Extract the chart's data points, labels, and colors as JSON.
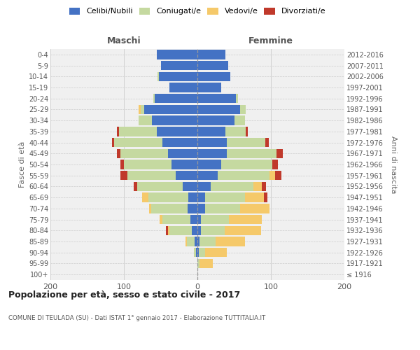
{
  "age_groups": [
    "100+",
    "95-99",
    "90-94",
    "85-89",
    "80-84",
    "75-79",
    "70-74",
    "65-69",
    "60-64",
    "55-59",
    "50-54",
    "45-49",
    "40-44",
    "35-39",
    "30-34",
    "25-29",
    "20-24",
    "15-19",
    "10-14",
    "5-9",
    "0-4"
  ],
  "birth_years": [
    "≤ 1916",
    "1917-1921",
    "1922-1926",
    "1927-1931",
    "1932-1936",
    "1937-1941",
    "1942-1946",
    "1947-1951",
    "1952-1956",
    "1957-1961",
    "1962-1966",
    "1967-1971",
    "1972-1976",
    "1977-1981",
    "1982-1986",
    "1987-1991",
    "1992-1996",
    "1997-2001",
    "2002-2006",
    "2007-2011",
    "2012-2016"
  ],
  "maschi": {
    "celibi": [
      0,
      0,
      2,
      4,
      8,
      10,
      13,
      12,
      20,
      30,
      35,
      40,
      48,
      55,
      62,
      72,
      58,
      38,
      52,
      50,
      55
    ],
    "coniugati": [
      0,
      0,
      3,
      10,
      30,
      38,
      50,
      55,
      62,
      65,
      65,
      65,
      65,
      52,
      18,
      5,
      2,
      0,
      2,
      0,
      0
    ],
    "vedovi": [
      0,
      0,
      0,
      2,
      2,
      3,
      3,
      8,
      0,
      0,
      0,
      0,
      0,
      0,
      0,
      3,
      0,
      0,
      0,
      0,
      0
    ],
    "divorziati": [
      0,
      0,
      0,
      0,
      3,
      0,
      0,
      0,
      5,
      10,
      5,
      5,
      3,
      3,
      0,
      0,
      0,
      0,
      0,
      0,
      0
    ]
  },
  "femmine": {
    "nubili": [
      0,
      0,
      2,
      3,
      5,
      5,
      10,
      10,
      18,
      28,
      32,
      40,
      40,
      38,
      50,
      58,
      52,
      32,
      45,
      42,
      38
    ],
    "coniugate": [
      0,
      3,
      8,
      22,
      32,
      38,
      48,
      55,
      58,
      70,
      70,
      68,
      52,
      28,
      15,
      8,
      3,
      0,
      0,
      0,
      0
    ],
    "vedove": [
      0,
      18,
      30,
      40,
      50,
      45,
      40,
      25,
      12,
      8,
      0,
      0,
      0,
      0,
      0,
      0,
      0,
      0,
      0,
      0,
      0
    ],
    "divorziate": [
      0,
      0,
      0,
      0,
      0,
      0,
      0,
      5,
      5,
      8,
      8,
      8,
      5,
      3,
      0,
      0,
      0,
      0,
      0,
      0,
      0
    ]
  },
  "colors": {
    "celibi_nubili": "#4472c4",
    "coniugati": "#c5d9a0",
    "vedovi": "#f5c96a",
    "divorziati": "#c0392b"
  },
  "title": "Popolazione per età, sesso e stato civile - 2017",
  "subtitle": "COMUNE DI TEULADA (SU) - Dati ISTAT 1° gennaio 2017 - Elaborazione TUTTITALIA.IT",
  "ylabel_left": "Fasce di età",
  "ylabel_right": "Anni di nascita",
  "xlabel_left": "Maschi",
  "xlabel_right": "Femmine",
  "xlim": 200,
  "background_color": "#ffffff",
  "plot_bg": "#f0f0f0",
  "grid_color": "#cccccc"
}
